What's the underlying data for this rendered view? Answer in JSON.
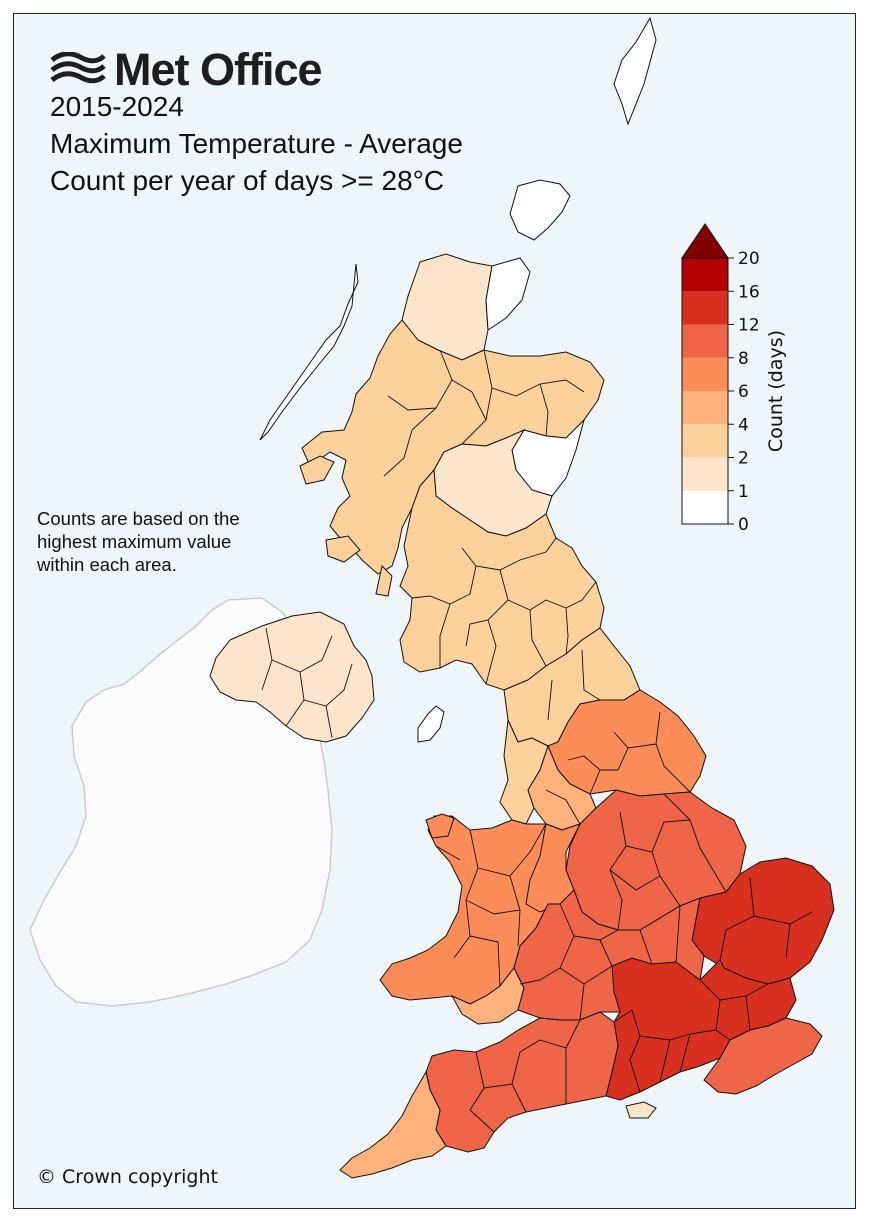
{
  "header": {
    "logo_text": "Met Office",
    "period": "2015-2024",
    "variable": "Maximum Temperature - Average",
    "metric": "Count per year of days >= 28°C"
  },
  "note_lines": [
    "Counts are based on the",
    "highest maximum value",
    "within each area."
  ],
  "footer": {
    "copyright": "© Crown copyright"
  },
  "legend": {
    "label": "Count (days)",
    "ticks": [
      "0",
      "1",
      "2",
      "4",
      "6",
      "8",
      "12",
      "16",
      "20"
    ],
    "bins": [
      {
        "min": 0,
        "max": 1,
        "color": "#ffffff"
      },
      {
        "min": 1,
        "max": 2,
        "color": "#fde5cb"
      },
      {
        "min": 2,
        "max": 4,
        "color": "#fdd19c"
      },
      {
        "min": 4,
        "max": 6,
        "color": "#fdb27c"
      },
      {
        "min": 6,
        "max": 8,
        "color": "#fc8d59"
      },
      {
        "min": 8,
        "max": 12,
        "color": "#ef6548"
      },
      {
        "min": 12,
        "max": 16,
        "color": "#d7301f"
      },
      {
        "min": 16,
        "max": 20,
        "color": "#b30000"
      }
    ],
    "over_color": "#7f0000",
    "over_label": ">20"
  },
  "colors": {
    "background": "#eef6fa",
    "ireland_land": "#fbfbfb",
    "ireland_outline": "#cccccc",
    "boundary": "#111111"
  }
}
